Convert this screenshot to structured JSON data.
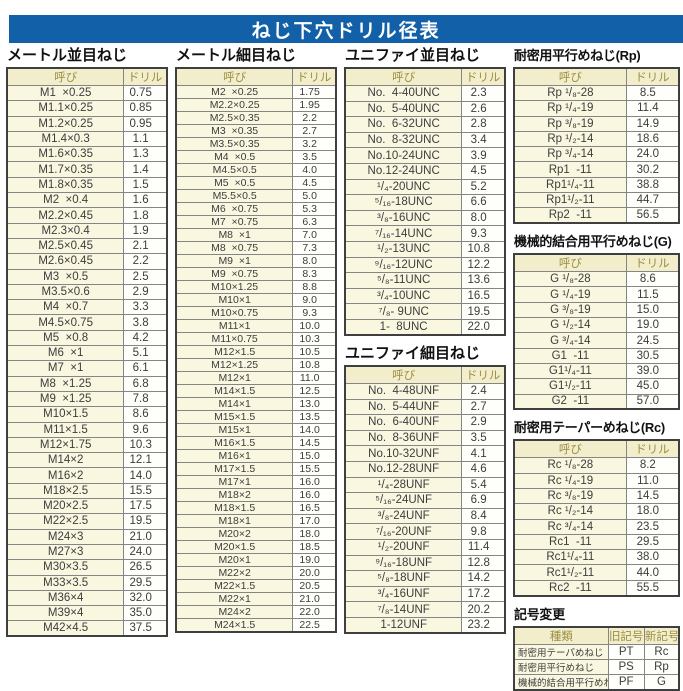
{
  "title": "ねじ下穴ドリル径表",
  "colors": {
    "title_bar_blue": "#1261a8",
    "header_cream": "#f2eecb",
    "header_text_olive": "#9b8e44",
    "name_cell_cream": "#faf7e1",
    "drill_cell_white": "#fefefa"
  },
  "col_headers": {
    "name": "呼び",
    "drill": "ドリル"
  },
  "sections": {
    "metric_coarse": {
      "title": "メートル並目ねじ",
      "rows": [
        [
          "M1  ×0.25",
          "0.75"
        ],
        [
          "M1.1×0.25",
          "0.85"
        ],
        [
          "M1.2×0.25",
          "0.95"
        ],
        [
          "M1.4×0.3",
          "1.1"
        ],
        [
          "M1.6×0.35",
          "1.3"
        ],
        [
          "M1.7×0.35",
          "1.4"
        ],
        [
          "M1.8×0.35",
          "1.5"
        ],
        [
          "M2  ×0.4",
          "1.6"
        ],
        [
          "M2.2×0.45",
          "1.8"
        ],
        [
          "M2.3×0.4",
          "1.9"
        ],
        [
          "M2.5×0.45",
          "2.1"
        ],
        [
          "M2.6×0.45",
          "2.2"
        ],
        [
          "M3  ×0.5",
          "2.5"
        ],
        [
          "M3.5×0.6",
          "2.9"
        ],
        [
          "M4  ×0.7",
          "3.3"
        ],
        [
          "M4.5×0.75",
          "3.8"
        ],
        [
          "M5  ×0.8",
          "4.2"
        ],
        [
          "M6  ×1",
          "5.1"
        ],
        [
          "M7  ×1",
          "6.1"
        ],
        [
          "M8  ×1.25",
          "6.8"
        ],
        [
          "M9  ×1.25",
          "7.8"
        ],
        [
          "M10×1.5",
          "8.6"
        ],
        [
          "M11×1.5",
          "9.6"
        ],
        [
          "M12×1.75",
          "10.3"
        ],
        [
          "M14×2",
          "12.1"
        ],
        [
          "M16×2",
          "14.0"
        ],
        [
          "M18×2.5",
          "15.5"
        ],
        [
          "M20×2.5",
          "17.5"
        ],
        [
          "M22×2.5",
          "19.5"
        ],
        [
          "M24×3",
          "21.0"
        ],
        [
          "M27×3",
          "24.0"
        ],
        [
          "M30×3.5",
          "26.5"
        ],
        [
          "M33×3.5",
          "29.5"
        ],
        [
          "M36×4",
          "32.0"
        ],
        [
          "M39×4",
          "35.0"
        ],
        [
          "M42×4.5",
          "37.5"
        ]
      ]
    },
    "metric_fine": {
      "title": "メートル細目ねじ",
      "rows": [
        [
          "M2  ×0.25",
          "1.75"
        ],
        [
          "M2.2×0.25",
          "1.95"
        ],
        [
          "M2.5×0.35",
          "2.2"
        ],
        [
          "M3  ×0.35",
          "2.7"
        ],
        [
          "M3.5×0.35",
          "3.2"
        ],
        [
          "M4  ×0.5",
          "3.5"
        ],
        [
          "M4.5×0.5",
          "4.0"
        ],
        [
          "M5  ×0.5",
          "4.5"
        ],
        [
          "M5.5×0.5",
          "5.0"
        ],
        [
          "M6  ×0.75",
          "5.3"
        ],
        [
          "M7  ×0.75",
          "6.3"
        ],
        [
          "M8  ×1",
          "7.0"
        ],
        [
          "M8  ×0.75",
          "7.3"
        ],
        [
          "M9  ×1",
          "8.0"
        ],
        [
          "M9  ×0.75",
          "8.3"
        ],
        [
          "M10×1.25",
          "8.8"
        ],
        [
          "M10×1",
          "9.0"
        ],
        [
          "M10×0.75",
          "9.3"
        ],
        [
          "M11×1",
          "10.0"
        ],
        [
          "M11×0.75",
          "10.3"
        ],
        [
          "M12×1.5",
          "10.5"
        ],
        [
          "M12×1.25",
          "10.8"
        ],
        [
          "M12×1",
          "11.0"
        ],
        [
          "M14×1.5",
          "12.5"
        ],
        [
          "M14×1",
          "13.0"
        ],
        [
          "M15×1.5",
          "13.5"
        ],
        [
          "M15×1",
          "14.0"
        ],
        [
          "M16×1.5",
          "14.5"
        ],
        [
          "M16×1",
          "15.0"
        ],
        [
          "M17×1.5",
          "15.5"
        ],
        [
          "M17×1",
          "16.0"
        ],
        [
          "M18×2",
          "16.0"
        ],
        [
          "M18×1.5",
          "16.5"
        ],
        [
          "M18×1",
          "17.0"
        ],
        [
          "M20×2",
          "18.0"
        ],
        [
          "M20×1.5",
          "18.5"
        ],
        [
          "M20×1",
          "19.0"
        ],
        [
          "M22×2",
          "20.0"
        ],
        [
          "M22×1.5",
          "20.5"
        ],
        [
          "M22×1",
          "21.0"
        ],
        [
          "M24×2",
          "22.0"
        ],
        [
          "M24×1.5",
          "22.5"
        ]
      ]
    },
    "unified_coarse": {
      "title": "ユニファイ並目ねじ",
      "rows": [
        [
          "No.  4-40UNC",
          "2.3"
        ],
        [
          "No.  5-40UNC",
          "2.6"
        ],
        [
          "No.  6-32UNC",
          "2.8"
        ],
        [
          "No.  8-32UNC",
          "3.4"
        ],
        [
          "No.10-24UNC",
          "3.9"
        ],
        [
          "No.12-24UNC",
          "4.5"
        ],
        [
          "¹/₄-20UNC",
          "5.2"
        ],
        [
          "⁵/₁₆-18UNC",
          "6.6"
        ],
        [
          "³/₈-16UNC",
          "8.0"
        ],
        [
          "⁷/₁₆-14UNC",
          "9.3"
        ],
        [
          "¹/₂-13UNC",
          "10.8"
        ],
        [
          "⁹/₁₆-12UNC",
          "12.2"
        ],
        [
          "⁵/₈-11UNC",
          "13.6"
        ],
        [
          "³/₄-10UNC",
          "16.5"
        ],
        [
          "⁷/₈- 9UNC",
          "19.5"
        ],
        [
          "1-  8UNC",
          "22.0"
        ]
      ]
    },
    "unified_fine": {
      "title": "ユニファイ細目ねじ",
      "rows": [
        [
          "No.  4-48UNF",
          "2.4"
        ],
        [
          "No.  5-44UNF",
          "2.7"
        ],
        [
          "No.  6-40UNF",
          "2.9"
        ],
        [
          "No.  8-36UNF",
          "3.5"
        ],
        [
          "No.10-32UNF",
          "4.1"
        ],
        [
          "No.12-28UNF",
          "4.6"
        ],
        [
          "¹/₄-28UNF",
          "5.4"
        ],
        [
          "⁵/₁₆-24UNF",
          "6.9"
        ],
        [
          "³/₈-24UNF",
          "8.4"
        ],
        [
          "⁷/₁₆-20UNF",
          "9.8"
        ],
        [
          "¹/₂-20UNF",
          "11.4"
        ],
        [
          "⁹/₁₆-18UNF",
          "12.8"
        ],
        [
          "⁵/₈-18UNF",
          "14.2"
        ],
        [
          "³/₄-16UNF",
          "17.2"
        ],
        [
          "⁷/₈-14UNF",
          "20.2"
        ],
        [
          "1-12UNF",
          "23.2"
        ]
      ]
    },
    "rp": {
      "title": "耐密用平行めねじ(Rp)",
      "rows": [
        [
          "Rp ¹/₈-28",
          "8.5"
        ],
        [
          "Rp ¹/₄-19",
          "11.4"
        ],
        [
          "Rp ³/₈-19",
          "14.9"
        ],
        [
          "Rp ¹/₂-14",
          "18.6"
        ],
        [
          "Rp ³/₄-14",
          "24.0"
        ],
        [
          "Rp1  -11",
          "30.2"
        ],
        [
          "Rp1¹/₄-11",
          "38.8"
        ],
        [
          "Rp1¹/₂-11",
          "44.7"
        ],
        [
          "Rp2  -11",
          "56.5"
        ]
      ]
    },
    "g": {
      "title": "機械的結合用平行めねじ(G)",
      "rows": [
        [
          "G ¹/₈-28",
          "8.6"
        ],
        [
          "G ¹/₄-19",
          "11.5"
        ],
        [
          "G ³/₈-19",
          "15.0"
        ],
        [
          "G ¹/₂-14",
          "19.0"
        ],
        [
          "G ³/₄-14",
          "24.5"
        ],
        [
          "G1  -11",
          "30.5"
        ],
        [
          "G1¹/₄-11",
          "39.0"
        ],
        [
          "G1¹/₂-11",
          "45.0"
        ],
        [
          "G2  -11",
          "57.0"
        ]
      ]
    },
    "rc": {
      "title": "耐密用テーパーめねじ(Rc)",
      "rows": [
        [
          "Rc ¹/₈-28",
          "8.2"
        ],
        [
          "Rc ¹/₄-19",
          "11.0"
        ],
        [
          "Rc ³/₈-19",
          "14.5"
        ],
        [
          "Rc ¹/₂-14",
          "18.0"
        ],
        [
          "Rc ³/₄-14",
          "23.5"
        ],
        [
          "Rc1  -11",
          "29.5"
        ],
        [
          "Rc1¹/₄-11",
          "38.0"
        ],
        [
          "Rc1¹/₂-11",
          "44.0"
        ],
        [
          "Rc2  -11",
          "55.5"
        ]
      ]
    },
    "symbol_change": {
      "title": "記号変更",
      "headers": {
        "kind": "種類",
        "old": "旧記号",
        "new": "新記号"
      },
      "rows": [
        [
          "耐密用テーパめねじ",
          "PT",
          "Rc"
        ],
        [
          "耐密用平行めねじ",
          "PS",
          "Rp"
        ],
        [
          "機械的結合用平行めねじ",
          "PF",
          "G"
        ]
      ]
    }
  }
}
